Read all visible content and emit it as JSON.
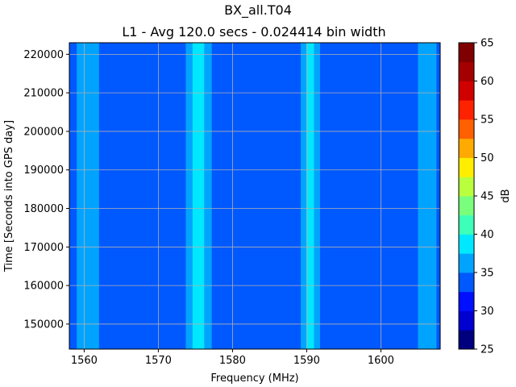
{
  "chart_data": {
    "type": "heatmap",
    "title": "BX_all.T04",
    "subtitle": "L1 - Avg 120.0 secs - 0.024414 bin width",
    "xlabel": "Frequency (MHz)",
    "ylabel": "Time [Seconds into GPS day]",
    "xlim": [
      1558,
      1608
    ],
    "ylim": [
      143500,
      223000
    ],
    "x_ticks": [
      1560,
      1570,
      1580,
      1590,
      1600
    ],
    "y_ticks": [
      150000,
      160000,
      170000,
      180000,
      190000,
      200000,
      210000,
      220000
    ],
    "grid": true,
    "colorbar": {
      "label": "dB",
      "min": 25,
      "max": 65,
      "ticks": [
        25,
        30,
        35,
        40,
        45,
        50,
        55,
        60,
        65
      ],
      "levels": [
        25,
        27.5,
        30,
        32.5,
        35,
        37.5,
        40,
        42.5,
        45,
        47.5,
        50,
        52.5,
        55,
        57.5,
        60,
        62.5,
        65
      ],
      "colors": [
        "#00007f",
        "#0000d1",
        "#0010ff",
        "#0058ff",
        "#00a4ff",
        "#00e8ff",
        "#3dffba",
        "#7aff7d",
        "#baff3d",
        "#ffee00",
        "#ffaa00",
        "#ff6000",
        "#ff2200",
        "#d10000",
        "#a50000",
        "#7f0000"
      ]
    },
    "background_level_db": 33.5,
    "bands": [
      {
        "x_start": 1559.0,
        "x_end": 1561.0,
        "level_db": 37
      },
      {
        "x_start": 1561.0,
        "x_end": 1562.0,
        "level_db": 36
      },
      {
        "x_start": 1573.7,
        "x_end": 1574.6,
        "level_db": 37
      },
      {
        "x_start": 1574.6,
        "x_end": 1576.2,
        "level_db": 39
      },
      {
        "x_start": 1576.2,
        "x_end": 1577.2,
        "level_db": 37
      },
      {
        "x_start": 1589.2,
        "x_end": 1590.0,
        "level_db": 37
      },
      {
        "x_start": 1590.0,
        "x_end": 1591.0,
        "level_db": 38
      },
      {
        "x_start": 1591.0,
        "x_end": 1591.8,
        "level_db": 36
      },
      {
        "x_start": 1605.0,
        "x_end": 1606.2,
        "level_db": 36
      },
      {
        "x_start": 1606.2,
        "x_end": 1607.5,
        "level_db": 37
      }
    ]
  }
}
